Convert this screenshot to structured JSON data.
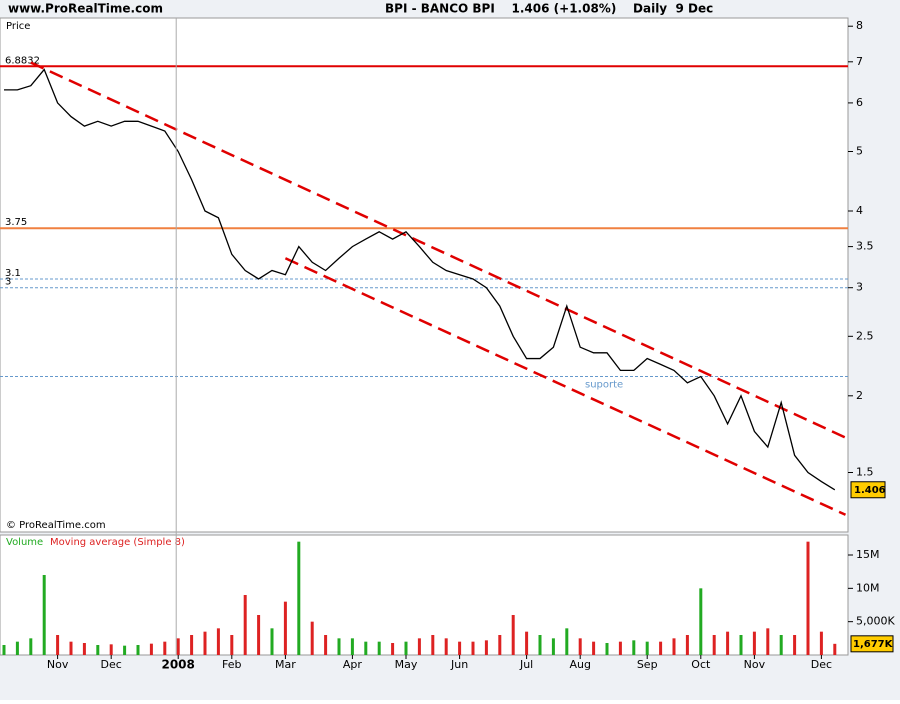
{
  "header": {
    "site": "www.ProRealTime.com",
    "title": "BPI - BANCO BPI    1.406 (+1.08%)    Daily  9 Dec"
  },
  "chart_data": [
    {
      "type": "line",
      "y_label": "Price",
      "credit": "© ProRealTime.com",
      "color": "#000000",
      "log_scale": true,
      "ylim": [
        1.2,
        8.25
      ],
      "yticks": [
        1.5,
        2,
        2.5,
        3,
        3.5,
        4,
        5,
        6,
        7,
        8
      ],
      "values": [
        6.3,
        6.3,
        6.4,
        6.8,
        6.0,
        5.7,
        5.5,
        5.6,
        5.5,
        5.6,
        5.6,
        5.5,
        5.4,
        5.0,
        4.5,
        4.0,
        3.9,
        3.4,
        3.2,
        3.1,
        3.2,
        3.15,
        3.5,
        3.3,
        3.2,
        3.35,
        3.5,
        3.6,
        3.7,
        3.6,
        3.7,
        3.5,
        3.3,
        3.2,
        3.15,
        3.1,
        3.0,
        2.8,
        2.5,
        2.3,
        2.3,
        2.4,
        2.8,
        2.4,
        2.35,
        2.35,
        2.2,
        2.2,
        2.3,
        2.25,
        2.2,
        2.1,
        2.15,
        2.0,
        1.8,
        2.0,
        1.75,
        1.65,
        1.95,
        1.6,
        1.5,
        1.45,
        1.406
      ],
      "hlines": [
        {
          "value": 6.8832,
          "label": "6.8832",
          "color": "#e00000"
        },
        {
          "value": 3.75,
          "label": "3.75",
          "color": "#f08040"
        },
        {
          "value": 3.1,
          "label": "3.1",
          "color": "#6699cc",
          "dash": true
        },
        {
          "value": 3,
          "label": "3",
          "color": "#6699cc",
          "dash": true
        },
        {
          "value": 2.15,
          "color": "#6699cc",
          "dash": true
        }
      ],
      "trendlines": [
        {
          "x": [
            2,
            62.8
          ],
          "y": [
            6.98,
            1.71
          ],
          "color": "#e00000"
        },
        {
          "x": [
            21,
            62.8
          ],
          "y": [
            3.35,
            1.28
          ],
          "color": "#e00000"
        }
      ],
      "annotation": "suporte",
      "last_label": "1.406"
    },
    {
      "type": "bar",
      "title": "Volume",
      "subtitle": "Moving average (Simple 8)",
      "categories": [
        null,
        null,
        null,
        null,
        "Nov",
        null,
        null,
        null,
        "Dec",
        null,
        null,
        null,
        null,
        "2008",
        null,
        null,
        null,
        "Feb",
        null,
        null,
        null,
        "Mar",
        null,
        null,
        null,
        null,
        "Apr",
        null,
        null,
        null,
        "May",
        null,
        null,
        null,
        "Jun",
        null,
        null,
        null,
        null,
        "Jul",
        null,
        null,
        null,
        "Aug",
        null,
        null,
        null,
        null,
        "Sep",
        null,
        null,
        null,
        "Oct",
        null,
        null,
        null,
        "Nov",
        null,
        null,
        null,
        null,
        "Dec",
        null
      ],
      "ylim": [
        0,
        18000000
      ],
      "yticks": [
        {
          "value": 5000000,
          "label": "5,000K"
        },
        {
          "value": 10000000,
          "label": "10M"
        },
        {
          "value": 15000000,
          "label": "15M"
        }
      ],
      "values": [
        1500000,
        2000000,
        2500000,
        12000000,
        3000000,
        2000000,
        1800000,
        1500000,
        1600000,
        1400000,
        1500000,
        1700000,
        2000000,
        2500000,
        3000000,
        3500000,
        4000000,
        3000000,
        9000000,
        6000000,
        4000000,
        8000000,
        17000000,
        5000000,
        3000000,
        2500000,
        2500000,
        2000000,
        2000000,
        1800000,
        2000000,
        2500000,
        3000000,
        2500000,
        2000000,
        2000000,
        2200000,
        3000000,
        6000000,
        3500000,
        3000000,
        2500000,
        4000000,
        2500000,
        2000000,
        1800000,
        2000000,
        2200000,
        2000000,
        2000000,
        2500000,
        3000000,
        10000000,
        3000000,
        3500000,
        3000000,
        3500000,
        4000000,
        3000000,
        3000000,
        17000000,
        3500000,
        1677000
      ],
      "last_label": "1,677K",
      "up_color": "#22aa22",
      "down_color": "#dd2222"
    }
  ]
}
